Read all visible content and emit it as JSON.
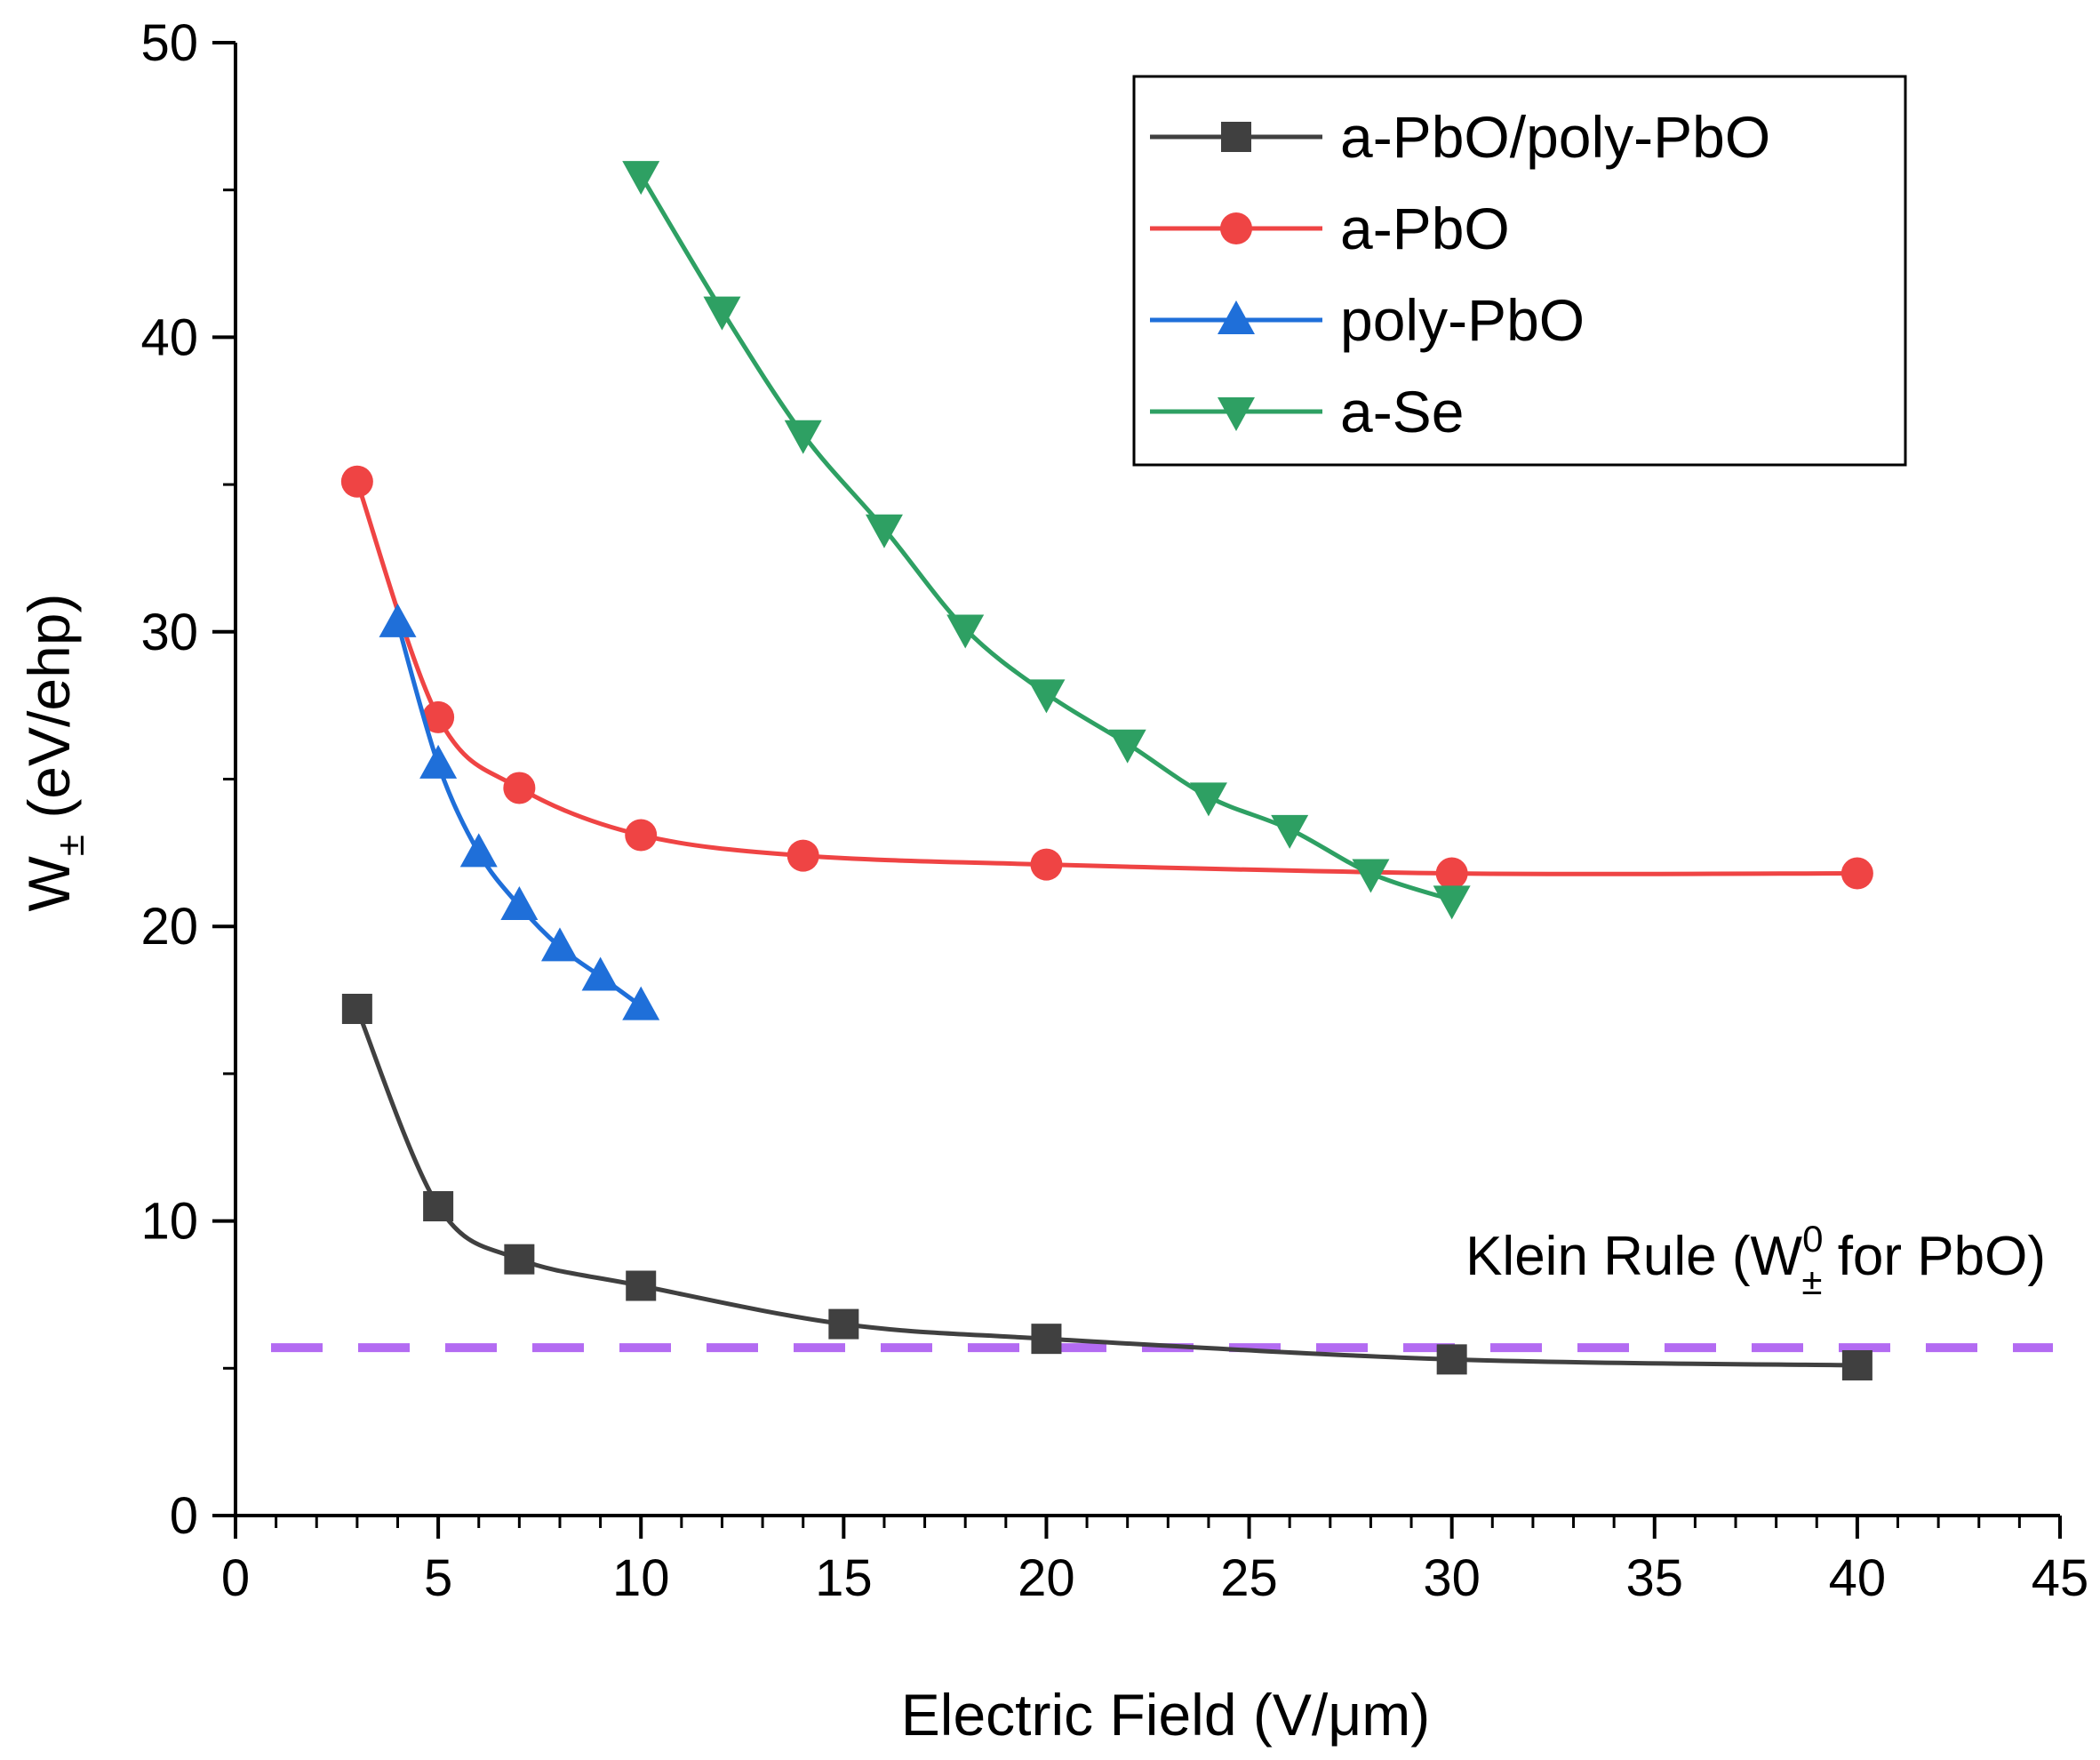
{
  "chart_data": {
    "type": "line",
    "xlabel": "Electric Field (V/μm)",
    "ylabel": {
      "base": "W",
      "sub": "±",
      "rest": " (eV/ehp)"
    },
    "xlim": [
      0,
      45
    ],
    "ylim": [
      0,
      50
    ],
    "xticks": [
      0,
      5,
      10,
      15,
      20,
      25,
      30,
      35,
      40,
      45
    ],
    "yticks": [
      0,
      10,
      20,
      30,
      40,
      50
    ],
    "x_minor_step": 1,
    "y_minor_step": 5,
    "grid": false,
    "legend_position": "top-right",
    "series": [
      {
        "name": "a-PbO/poly-PbO",
        "marker": "square",
        "color": "#404040",
        "x": [
          3,
          5,
          7,
          10,
          15,
          20,
          30,
          40
        ],
        "y": [
          17.2,
          10.5,
          8.7,
          7.8,
          6.5,
          6.0,
          5.3,
          5.1
        ]
      },
      {
        "name": "a-PbO",
        "marker": "circle",
        "color": "#ef4444",
        "x": [
          3,
          5,
          7,
          10,
          14,
          20,
          30,
          40
        ],
        "y": [
          35.1,
          27.1,
          24.7,
          23.1,
          22.4,
          22.1,
          21.8,
          21.8
        ]
      },
      {
        "name": "poly-PbO",
        "marker": "triangle-up",
        "color": "#1f6fd9",
        "x": [
          4,
          5,
          6,
          7,
          8,
          9,
          10
        ],
        "y": [
          30.3,
          25.5,
          22.5,
          20.7,
          19.3,
          18.3,
          17.3
        ]
      },
      {
        "name": "a-Se",
        "marker": "triangle-down",
        "color": "#2ea063",
        "x": [
          10,
          12,
          14,
          16,
          18,
          20,
          22,
          24,
          26,
          28,
          30
        ],
        "y": [
          45.5,
          40.9,
          36.7,
          33.5,
          30.1,
          27.9,
          26.2,
          24.4,
          23.3,
          21.8,
          20.9
        ]
      }
    ],
    "reference_line": {
      "y": 5.7,
      "color": "#b36bf2",
      "style": "dashed",
      "label": {
        "prefix": "Klein Rule (W",
        "sup": "0",
        "sub": "±",
        "suffix": " for PbO)"
      }
    }
  }
}
